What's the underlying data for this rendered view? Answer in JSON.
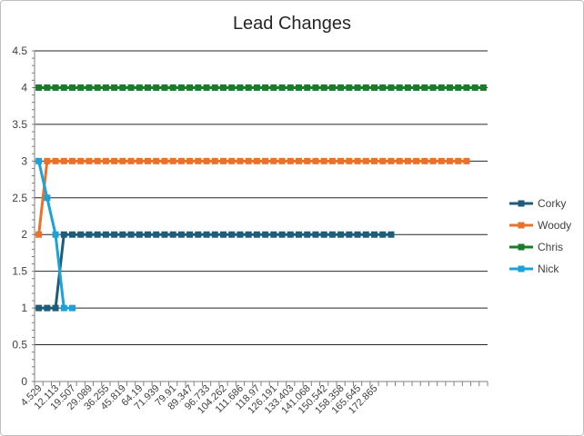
{
  "chart_data": {
    "type": "line",
    "title": "Lead Changes",
    "xlabel": "",
    "ylabel": "",
    "ylim": [
      0,
      4.5
    ],
    "y_ticks": [
      "0",
      "0.5",
      "1",
      "1.5",
      "2",
      "2.5",
      "3",
      "3.5",
      "4",
      "4.5"
    ],
    "x_tick_labels": [
      "4.529",
      "12.113",
      "19.507",
      "29.089",
      "36.255",
      "45.819",
      "64.19",
      "71.939",
      "79.91",
      "89.347",
      "96.733",
      "104.262",
      "111.686",
      "118.97",
      "126.191",
      "133.403",
      "141.068",
      "150.542",
      "158.358",
      "165.645",
      "172.865"
    ],
    "category_count": 54,
    "legend_position": "right",
    "grid": true,
    "series": [
      {
        "name": "Corky",
        "color": "#1f5c7a",
        "values": [
          1,
          1,
          1,
          2,
          2,
          2,
          2,
          2,
          2,
          2,
          2,
          2,
          2,
          2,
          2,
          2,
          2,
          2,
          2,
          2,
          2,
          2,
          2,
          2,
          2,
          2,
          2,
          2,
          2,
          2,
          2,
          2,
          2,
          2,
          2,
          2,
          2,
          2,
          2,
          2,
          2,
          2,
          2
        ]
      },
      {
        "name": "Woody",
        "color": "#e8722b",
        "values": [
          2,
          3,
          3,
          3,
          3,
          3,
          3,
          3,
          3,
          3,
          3,
          3,
          3,
          3,
          3,
          3,
          3,
          3,
          3,
          3,
          3,
          3,
          3,
          3,
          3,
          3,
          3,
          3,
          3,
          3,
          3,
          3,
          3,
          3,
          3,
          3,
          3,
          3,
          3,
          3,
          3,
          3,
          3,
          3,
          3,
          3,
          3,
          3,
          3,
          3,
          3,
          3
        ]
      },
      {
        "name": "Chris",
        "color": "#1c7a2b",
        "values": [
          4,
          4,
          4,
          4,
          4,
          4,
          4,
          4,
          4,
          4,
          4,
          4,
          4,
          4,
          4,
          4,
          4,
          4,
          4,
          4,
          4,
          4,
          4,
          4,
          4,
          4,
          4,
          4,
          4,
          4,
          4,
          4,
          4,
          4,
          4,
          4,
          4,
          4,
          4,
          4,
          4,
          4,
          4,
          4,
          4,
          4,
          4,
          4,
          4,
          4,
          4,
          4,
          4,
          4
        ]
      },
      {
        "name": "Nick",
        "color": "#1ba3d9",
        "values": [
          3,
          2.5,
          2,
          1,
          1
        ]
      }
    ]
  }
}
